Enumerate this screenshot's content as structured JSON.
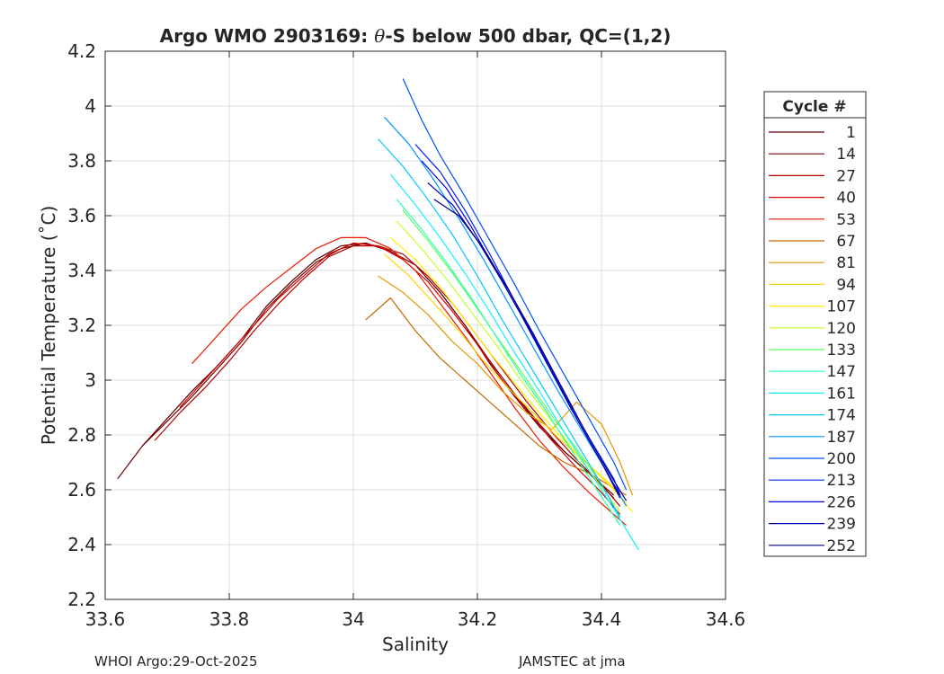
{
  "chart_data": {
    "type": "line",
    "title": "Argo WMO 2903169: θ-S below 500 dbar,  QC=(1,2)",
    "title_parts": {
      "prefix": "Argo WMO 2903169: ",
      "theta": "θ",
      "suffix": "-S below 500 dbar,  QC=(1,2)"
    },
    "xlabel": "Salinity",
    "ylabel": "Potential Temperature (˚C)",
    "xlim": [
      33.6,
      34.6
    ],
    "ylim": [
      2.2,
      4.2
    ],
    "xticks": [
      33.6,
      33.8,
      34,
      34.2,
      34.4,
      34.6
    ],
    "xtick_labels": [
      "33.6",
      "33.8",
      "34",
      "34.2",
      "34.4",
      "34.6"
    ],
    "yticks": [
      2.2,
      2.4,
      2.6,
      2.8,
      3.0,
      3.2,
      3.4,
      3.6,
      3.8,
      4.0,
      4.2
    ],
    "ytick_labels": [
      "2.2",
      "2.4",
      "2.6",
      "2.8",
      "3",
      "3.2",
      "3.4",
      "3.6",
      "3.8",
      "4",
      "4.2"
    ],
    "grid": true,
    "legend": {
      "title": "Cycle #",
      "placement": "outside-right",
      "entries": [
        "1",
        "14",
        "27",
        "40",
        "53",
        "67",
        "81",
        "94",
        "107",
        "120",
        "133",
        "147",
        "161",
        "174",
        "187",
        "200",
        "213",
        "226",
        "239",
        "252"
      ],
      "colors": [
        "#5a0000",
        "#7a0000",
        "#b20000",
        "#d40000",
        "#ee1a00",
        "#c06a00",
        "#e49600",
        "#ffd400",
        "#fff000",
        "#c4ff2a",
        "#5cff5c",
        "#2affa8",
        "#10f0ff",
        "#00c8ff",
        "#0096ff",
        "#0050ff",
        "#0020ff",
        "#0000e0",
        "#0000b0",
        "#00008c"
      ]
    },
    "series": [
      {
        "name": "1",
        "color": "#5a0000",
        "salinity": [
          33.62,
          33.66,
          33.7,
          33.74,
          33.78,
          33.82,
          33.86,
          33.9,
          33.94,
          33.98,
          34.02,
          34.06,
          34.1,
          34.14,
          34.18,
          34.22,
          34.26,
          34.3,
          34.34,
          34.38,
          34.42
        ],
        "theta": [
          2.64,
          2.76,
          2.86,
          2.96,
          3.05,
          3.15,
          3.27,
          3.36,
          3.44,
          3.49,
          3.5,
          3.47,
          3.42,
          3.32,
          3.2,
          3.06,
          2.94,
          2.83,
          2.74,
          2.66,
          2.57
        ]
      },
      {
        "name": "14",
        "color": "#7a0000",
        "salinity": [
          33.66,
          33.7,
          33.74,
          33.78,
          33.82,
          33.86,
          33.9,
          33.94,
          33.98,
          34.02,
          34.06,
          34.1,
          34.14,
          34.18,
          34.22,
          34.26,
          34.3,
          34.34,
          34.38,
          34.42
        ],
        "theta": [
          2.76,
          2.85,
          2.94,
          3.04,
          3.14,
          3.26,
          3.35,
          3.43,
          3.48,
          3.5,
          3.47,
          3.42,
          3.32,
          3.2,
          3.07,
          2.95,
          2.84,
          2.74,
          2.66,
          2.58
        ]
      },
      {
        "name": "27",
        "color": "#b20000",
        "salinity": [
          33.68,
          33.72,
          33.76,
          33.8,
          33.84,
          33.88,
          33.92,
          33.96,
          34.0,
          34.04,
          34.08,
          34.12,
          34.16,
          34.2,
          34.24,
          34.28,
          34.32,
          34.36,
          34.4,
          34.43
        ],
        "theta": [
          2.78,
          2.88,
          2.97,
          3.07,
          3.18,
          3.28,
          3.37,
          3.45,
          3.49,
          3.49,
          3.46,
          3.38,
          3.28,
          3.16,
          3.04,
          2.92,
          2.81,
          2.71,
          2.62,
          2.54
        ]
      },
      {
        "name": "40",
        "color": "#d40000",
        "salinity": [
          33.72,
          33.76,
          33.8,
          33.84,
          33.88,
          33.92,
          33.96,
          34.0,
          34.04,
          34.08,
          34.12,
          34.16,
          34.2,
          34.24,
          34.28,
          34.32,
          34.36,
          34.4,
          34.43
        ],
        "theta": [
          2.9,
          3.0,
          3.1,
          3.2,
          3.3,
          3.38,
          3.46,
          3.5,
          3.49,
          3.44,
          3.36,
          3.25,
          3.13,
          3.0,
          2.89,
          2.78,
          2.68,
          2.59,
          2.51
        ]
      },
      {
        "name": "53",
        "color": "#ee1a00",
        "salinity": [
          33.74,
          33.78,
          33.82,
          33.86,
          33.9,
          33.94,
          33.98,
          34.02,
          34.06,
          34.1,
          34.14,
          34.18,
          34.22,
          34.26,
          34.3,
          34.34,
          34.38,
          34.42,
          34.44
        ],
        "theta": [
          3.06,
          3.16,
          3.26,
          3.34,
          3.41,
          3.48,
          3.52,
          3.52,
          3.48,
          3.4,
          3.28,
          3.16,
          3.03,
          2.9,
          2.78,
          2.68,
          2.59,
          2.51,
          2.47
        ]
      },
      {
        "name": "67",
        "color": "#c06a00",
        "salinity": [
          34.02,
          34.06,
          34.1,
          34.14,
          34.18,
          34.22,
          34.26,
          34.3,
          34.34,
          34.38,
          34.41,
          34.44
        ],
        "theta": [
          3.22,
          3.3,
          3.18,
          3.08,
          3.0,
          2.92,
          2.84,
          2.76,
          2.7,
          2.66,
          2.62,
          2.58
        ]
      },
      {
        "name": "81",
        "color": "#e49600",
        "salinity": [
          34.04,
          34.08,
          34.12,
          34.16,
          34.2,
          34.24,
          34.28,
          34.32,
          34.36,
          34.4,
          34.43,
          34.45
        ],
        "theta": [
          3.38,
          3.32,
          3.24,
          3.14,
          3.06,
          2.96,
          2.88,
          2.82,
          2.92,
          2.84,
          2.7,
          2.58
        ]
      },
      {
        "name": "94",
        "color": "#ffd400",
        "salinity": [
          34.05,
          34.09,
          34.13,
          34.17,
          34.21,
          34.25,
          34.29,
          34.33,
          34.37,
          34.41,
          34.44
        ],
        "theta": [
          3.46,
          3.38,
          3.28,
          3.18,
          3.07,
          2.97,
          2.88,
          2.79,
          2.71,
          2.63,
          2.55
        ]
      },
      {
        "name": "107",
        "color": "#fff000",
        "salinity": [
          34.06,
          34.1,
          34.14,
          34.18,
          34.22,
          34.26,
          34.3,
          34.34,
          34.38,
          34.42,
          34.45
        ],
        "theta": [
          3.52,
          3.44,
          3.34,
          3.22,
          3.1,
          2.99,
          2.88,
          2.78,
          2.69,
          2.6,
          2.52
        ]
      },
      {
        "name": "120",
        "color": "#c4ff2a",
        "salinity": [
          34.07,
          34.11,
          34.15,
          34.19,
          34.23,
          34.27,
          34.31,
          34.35,
          34.39,
          34.43
        ],
        "theta": [
          3.58,
          3.48,
          3.37,
          3.25,
          3.13,
          3.0,
          2.88,
          2.76,
          2.64,
          2.52
        ]
      },
      {
        "name": "133",
        "color": "#5cff5c",
        "salinity": [
          34.08,
          34.12,
          34.16,
          34.2,
          34.24,
          34.28,
          34.32,
          34.36,
          34.4,
          34.43
        ],
        "theta": [
          3.62,
          3.51,
          3.39,
          3.26,
          3.13,
          3.0,
          2.87,
          2.75,
          2.62,
          2.5
        ]
      },
      {
        "name": "147",
        "color": "#2affa8",
        "salinity": [
          34.07,
          34.11,
          34.15,
          34.19,
          34.23,
          34.27,
          34.31,
          34.35,
          34.39,
          34.43
        ],
        "theta": [
          3.66,
          3.55,
          3.43,
          3.3,
          3.16,
          3.02,
          2.89,
          2.75,
          2.61,
          2.47
        ]
      },
      {
        "name": "161",
        "color": "#10f0ff",
        "salinity": [
          34.06,
          34.1,
          34.14,
          34.18,
          34.22,
          34.26,
          34.3,
          34.34,
          34.38,
          34.42,
          34.46
        ],
        "theta": [
          3.75,
          3.64,
          3.52,
          3.39,
          3.25,
          3.1,
          2.96,
          2.81,
          2.67,
          2.53,
          2.38
        ]
      },
      {
        "name": "174",
        "color": "#00c8ff",
        "salinity": [
          34.04,
          34.08,
          34.12,
          34.16,
          34.2,
          34.24,
          34.28,
          34.32,
          34.36,
          34.4,
          34.43
        ],
        "theta": [
          3.88,
          3.78,
          3.66,
          3.53,
          3.38,
          3.22,
          3.07,
          2.92,
          2.77,
          2.62,
          2.5
        ]
      },
      {
        "name": "187",
        "color": "#0096ff",
        "salinity": [
          34.05,
          34.09,
          34.13,
          34.17,
          34.21,
          34.25,
          34.29,
          34.33,
          34.37,
          34.41,
          34.44
        ],
        "theta": [
          3.96,
          3.86,
          3.73,
          3.59,
          3.44,
          3.28,
          3.12,
          2.96,
          2.81,
          2.66,
          2.54
        ]
      },
      {
        "name": "200",
        "color": "#0050ff",
        "salinity": [
          34.08,
          34.11,
          34.14,
          34.18,
          34.22,
          34.26,
          34.3,
          34.34,
          34.38,
          34.42,
          34.44
        ],
        "theta": [
          4.1,
          3.95,
          3.82,
          3.67,
          3.51,
          3.35,
          3.18,
          3.02,
          2.86,
          2.7,
          2.6
        ]
      },
      {
        "name": "213",
        "color": "#0020ff",
        "salinity": [
          34.1,
          34.14,
          34.18,
          34.22,
          34.26,
          34.3,
          34.34,
          34.38,
          34.42,
          34.43
        ],
        "theta": [
          3.86,
          3.76,
          3.62,
          3.46,
          3.29,
          3.12,
          2.95,
          2.79,
          2.64,
          2.58
        ]
      },
      {
        "name": "226",
        "color": "#0000e0",
        "salinity": [
          34.11,
          34.15,
          34.19,
          34.23,
          34.27,
          34.31,
          34.35,
          34.39,
          34.43
        ],
        "theta": [
          3.8,
          3.7,
          3.56,
          3.4,
          3.24,
          3.07,
          2.9,
          2.74,
          2.58
        ]
      },
      {
        "name": "239",
        "color": "#0000b0",
        "salinity": [
          34.12,
          34.16,
          34.2,
          34.24,
          34.28,
          34.32,
          34.36,
          34.4,
          34.43
        ],
        "theta": [
          3.72,
          3.64,
          3.51,
          3.36,
          3.2,
          3.03,
          2.86,
          2.7,
          2.57
        ]
      },
      {
        "name": "252",
        "color": "#00008c",
        "salinity": [
          34.13,
          34.17,
          34.21,
          34.25,
          34.29,
          34.33,
          34.37,
          34.41,
          34.44
        ],
        "theta": [
          3.66,
          3.6,
          3.48,
          3.33,
          3.17,
          3.0,
          2.83,
          2.67,
          2.56
        ]
      }
    ]
  },
  "footer": {
    "left": "WHOI Argo:29-Oct-2025",
    "right": "JAMSTEC at jma"
  }
}
